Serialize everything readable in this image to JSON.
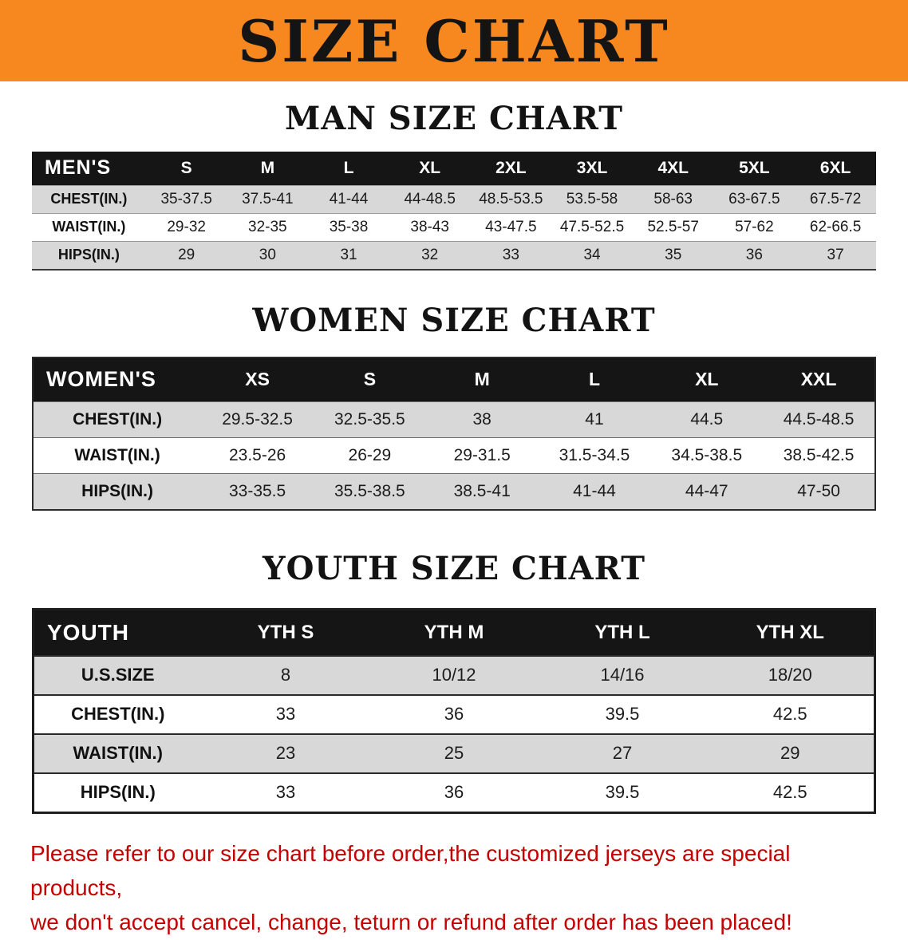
{
  "banner": {
    "title": "SIZE CHART"
  },
  "colors": {
    "banner_bg": "#F6881F",
    "header_bar": "#151515",
    "row_shade": "#D8D8D8",
    "disclaimer_red": "#C40000"
  },
  "men": {
    "title": "MAN SIZE CHART",
    "header_label": "MEN'S",
    "columns": [
      "S",
      "M",
      "L",
      "XL",
      "2XL",
      "3XL",
      "4XL",
      "5XL",
      "6XL"
    ],
    "rows": [
      {
        "label": "CHEST(IN.)",
        "values": [
          "35-37.5",
          "37.5-41",
          "41-44",
          "44-48.5",
          "48.5-53.5",
          "53.5-58",
          "58-63",
          "63-67.5",
          "67.5-72"
        ]
      },
      {
        "label": "WAIST(IN.)",
        "values": [
          "29-32",
          "32-35",
          "35-38",
          "38-43",
          "43-47.5",
          "47.5-52.5",
          "52.5-57",
          "57-62",
          "62-66.5"
        ]
      },
      {
        "label": "HIPS(IN.)",
        "values": [
          "29",
          "30",
          "31",
          "32",
          "33",
          "34",
          "35",
          "36",
          "37"
        ]
      }
    ]
  },
  "women": {
    "title": "WOMEN SIZE CHART",
    "header_label": "WOMEN'S",
    "columns": [
      "XS",
      "S",
      "M",
      "L",
      "XL",
      "XXL"
    ],
    "rows": [
      {
        "label": "CHEST(IN.)",
        "values": [
          "29.5-32.5",
          "32.5-35.5",
          "38",
          "41",
          "44.5",
          "44.5-48.5"
        ]
      },
      {
        "label": "WAIST(IN.)",
        "values": [
          "23.5-26",
          "26-29",
          "29-31.5",
          "31.5-34.5",
          "34.5-38.5",
          "38.5-42.5"
        ]
      },
      {
        "label": "HIPS(IN.)",
        "values": [
          "33-35.5",
          "35.5-38.5",
          "38.5-41",
          "41-44",
          "44-47",
          "47-50"
        ]
      }
    ]
  },
  "youth": {
    "title": "YOUTH SIZE CHART",
    "header_label": "YOUTH",
    "columns": [
      "YTH S",
      "YTH M",
      "YTH L",
      "YTH XL"
    ],
    "rows": [
      {
        "label": "U.S.SIZE",
        "values": [
          "8",
          "10/12",
          "14/16",
          "18/20"
        ]
      },
      {
        "label": "CHEST(IN.)",
        "values": [
          "33",
          "36",
          "39.5",
          "42.5"
        ]
      },
      {
        "label": "WAIST(IN.)",
        "values": [
          "23",
          "25",
          "27",
          "29"
        ]
      },
      {
        "label": "HIPS(IN.)",
        "values": [
          "33",
          "36",
          "39.5",
          "42.5"
        ]
      }
    ]
  },
  "disclaimer": {
    "line1": "Please refer to our size chart before order,the customized jerseys are special products,",
    "line2": "we don't accept cancel, change, teturn or refund after order has been placed!"
  }
}
